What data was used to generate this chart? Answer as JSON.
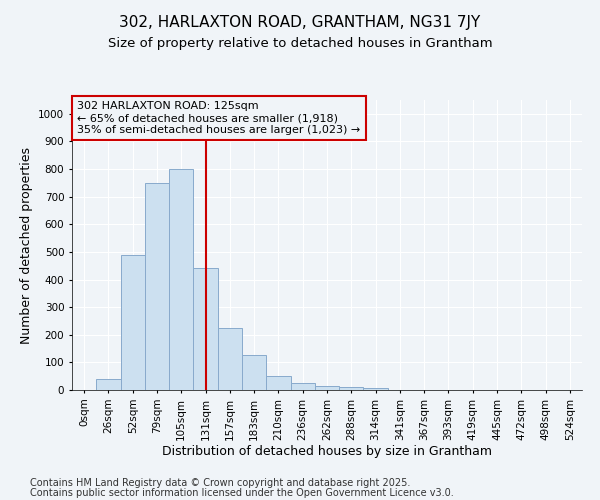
{
  "title": "302, HARLAXTON ROAD, GRANTHAM, NG31 7JY",
  "subtitle": "Size of property relative to detached houses in Grantham",
  "xlabel": "Distribution of detached houses by size in Grantham",
  "ylabel": "Number of detached properties",
  "bar_color": "#cce0f0",
  "bar_edge_color": "#88aacc",
  "background_color": "#f0f4f8",
  "plot_bg_color": "#f0f4f8",
  "categories": [
    "0sqm",
    "26sqm",
    "52sqm",
    "79sqm",
    "105sqm",
    "131sqm",
    "157sqm",
    "183sqm",
    "210sqm",
    "236sqm",
    "262sqm",
    "288sqm",
    "314sqm",
    "341sqm",
    "367sqm",
    "393sqm",
    "419sqm",
    "445sqm",
    "472sqm",
    "498sqm",
    "524sqm"
  ],
  "values": [
    0,
    40,
    490,
    750,
    800,
    440,
    225,
    125,
    50,
    25,
    15,
    10,
    8,
    0,
    0,
    0,
    0,
    0,
    0,
    0,
    0
  ],
  "ylim": [
    0,
    1050
  ],
  "yticks": [
    0,
    100,
    200,
    300,
    400,
    500,
    600,
    700,
    800,
    900,
    1000
  ],
  "vline_index": 5,
  "vline_color": "#cc0000",
  "annotation_text": "302 HARLAXTON ROAD: 125sqm\n← 65% of detached houses are smaller (1,918)\n35% of semi-detached houses are larger (1,023) →",
  "footer_line1": "Contains HM Land Registry data © Crown copyright and database right 2025.",
  "footer_line2": "Contains public sector information licensed under the Open Government Licence v3.0.",
  "title_fontsize": 11,
  "subtitle_fontsize": 9.5,
  "axis_label_fontsize": 9,
  "tick_fontsize": 7.5,
  "annotation_fontsize": 8,
  "footer_fontsize": 7
}
